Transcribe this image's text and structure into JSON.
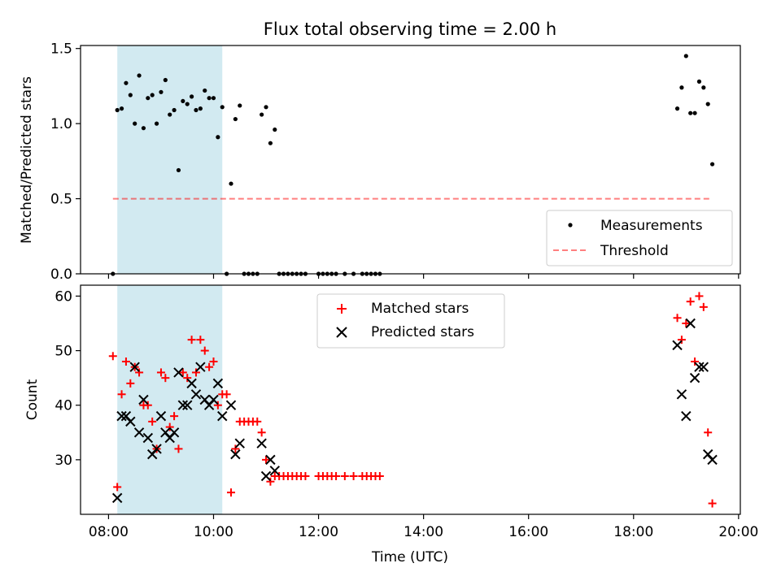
{
  "title": "Flux total observing time = 2.00 h",
  "colors": {
    "shade": "#add8e6",
    "measurement": "#000000",
    "threshold": "#ff0000",
    "matched": "#ff0000",
    "predicted": "#000000"
  },
  "chart_data": [
    {
      "type": "scatter",
      "ylabel": "Matched/Predicted stars",
      "ylim": [
        0,
        1.52
      ],
      "yticks": [
        "0.0",
        "0.5",
        "1.0",
        "1.5"
      ],
      "ytick_values": [
        0,
        0.5,
        1.0,
        1.5
      ],
      "shaded_span": [
        "08:10",
        "10:10"
      ],
      "legend_position": "lower-right",
      "legend": {
        "measurements": "Measurements",
        "threshold": "Threshold"
      },
      "threshold": {
        "value": 0.5,
        "from": "08:05",
        "to": "19:30",
        "style": "dashed"
      },
      "series": [
        {
          "name": "Measurements",
          "points": [
            [
              "08:05",
              0
            ],
            [
              "08:10",
              1.09
            ],
            [
              "08:15",
              1.1
            ],
            [
              "08:20",
              1.27
            ],
            [
              "08:25",
              1.19
            ],
            [
              "08:30",
              1.0
            ],
            [
              "08:35",
              1.32
            ],
            [
              "08:40",
              0.97
            ],
            [
              "08:45",
              1.17
            ],
            [
              "08:50",
              1.19
            ],
            [
              "08:55",
              1.0
            ],
            [
              "09:00",
              1.21
            ],
            [
              "09:05",
              1.29
            ],
            [
              "09:10",
              1.06
            ],
            [
              "09:15",
              1.09
            ],
            [
              "09:20",
              0.69
            ],
            [
              "09:25",
              1.15
            ],
            [
              "09:30",
              1.13
            ],
            [
              "09:35",
              1.18
            ],
            [
              "09:40",
              1.09
            ],
            [
              "09:45",
              1.1
            ],
            [
              "09:50",
              1.22
            ],
            [
              "09:55",
              1.17
            ],
            [
              "10:00",
              1.17
            ],
            [
              "10:05",
              0.91
            ],
            [
              "10:10",
              1.11
            ],
            [
              "10:15",
              0
            ],
            [
              "10:20",
              0.6
            ],
            [
              "10:25",
              1.03
            ],
            [
              "10:30",
              1.12
            ],
            [
              "10:35",
              0
            ],
            [
              "10:40",
              0
            ],
            [
              "10:45",
              0
            ],
            [
              "10:50",
              0
            ],
            [
              "10:55",
              1.06
            ],
            [
              "11:00",
              1.11
            ],
            [
              "11:05",
              0.87
            ],
            [
              "11:10",
              0.96
            ],
            [
              "11:15",
              0
            ],
            [
              "11:20",
              0
            ],
            [
              "11:25",
              0
            ],
            [
              "11:30",
              0
            ],
            [
              "11:35",
              0
            ],
            [
              "11:40",
              0
            ],
            [
              "11:45",
              0
            ],
            [
              "12:00",
              0
            ],
            [
              "12:05",
              0
            ],
            [
              "12:10",
              0
            ],
            [
              "12:15",
              0
            ],
            [
              "12:20",
              0
            ],
            [
              "12:30",
              0
            ],
            [
              "12:40",
              0
            ],
            [
              "12:50",
              0
            ],
            [
              "12:55",
              0
            ],
            [
              "13:00",
              0
            ],
            [
              "13:05",
              0
            ],
            [
              "13:10",
              0
            ],
            [
              "18:50",
              1.1
            ],
            [
              "18:55",
              1.24
            ],
            [
              "19:00",
              1.45
            ],
            [
              "19:05",
              1.07
            ],
            [
              "19:10",
              1.07
            ],
            [
              "19:15",
              1.28
            ],
            [
              "19:20",
              1.24
            ],
            [
              "19:25",
              1.13
            ],
            [
              "19:30",
              0.73
            ]
          ]
        }
      ]
    },
    {
      "type": "scatter",
      "xlabel": "Time (UTC)",
      "ylabel": "Count",
      "ylim": [
        20,
        62
      ],
      "yticks": [
        "30",
        "40",
        "50",
        "60"
      ],
      "ytick_values": [
        30,
        40,
        50,
        60
      ],
      "xlim": [
        "07:28",
        "20:02"
      ],
      "xticks": [
        "08:00",
        "10:00",
        "12:00",
        "14:00",
        "16:00",
        "18:00",
        "20:00"
      ],
      "shaded_span": [
        "08:10",
        "10:10"
      ],
      "legend_position": "upper-center",
      "legend": {
        "matched": "Matched stars",
        "predicted": "Predicted stars"
      },
      "series": [
        {
          "name": "Matched stars",
          "marker": "+",
          "points": [
            [
              "08:05",
              49
            ],
            [
              "08:10",
              25
            ],
            [
              "08:15",
              42
            ],
            [
              "08:20",
              48
            ],
            [
              "08:25",
              44
            ],
            [
              "08:30",
              47
            ],
            [
              "08:35",
              46
            ],
            [
              "08:40",
              40
            ],
            [
              "08:45",
              40
            ],
            [
              "08:50",
              37
            ],
            [
              "08:55",
              32
            ],
            [
              "09:00",
              46
            ],
            [
              "09:05",
              45
            ],
            [
              "09:10",
              36
            ],
            [
              "09:15",
              38
            ],
            [
              "09:20",
              32
            ],
            [
              "09:25",
              46
            ],
            [
              "09:30",
              45
            ],
            [
              "09:35",
              52
            ],
            [
              "09:40",
              46
            ],
            [
              "09:45",
              52
            ],
            [
              "09:50",
              50
            ],
            [
              "09:55",
              47
            ],
            [
              "10:00",
              48
            ],
            [
              "10:05",
              40
            ],
            [
              "10:10",
              42
            ],
            [
              "10:15",
              42
            ],
            [
              "10:20",
              24
            ],
            [
              "10:25",
              32
            ],
            [
              "10:30",
              37
            ],
            [
              "10:35",
              37
            ],
            [
              "10:40",
              37
            ],
            [
              "10:45",
              37
            ],
            [
              "10:50",
              37
            ],
            [
              "10:55",
              35
            ],
            [
              "11:00",
              30
            ],
            [
              "11:05",
              26
            ],
            [
              "11:10",
              27
            ],
            [
              "11:15",
              27
            ],
            [
              "11:20",
              27
            ],
            [
              "11:25",
              27
            ],
            [
              "11:30",
              27
            ],
            [
              "11:35",
              27
            ],
            [
              "11:40",
              27
            ],
            [
              "11:45",
              27
            ],
            [
              "12:00",
              27
            ],
            [
              "12:05",
              27
            ],
            [
              "12:10",
              27
            ],
            [
              "12:15",
              27
            ],
            [
              "12:20",
              27
            ],
            [
              "12:30",
              27
            ],
            [
              "12:40",
              27
            ],
            [
              "12:50",
              27
            ],
            [
              "12:55",
              27
            ],
            [
              "13:00",
              27
            ],
            [
              "13:05",
              27
            ],
            [
              "13:10",
              27
            ],
            [
              "18:50",
              56
            ],
            [
              "18:55",
              52
            ],
            [
              "19:00",
              55
            ],
            [
              "19:05",
              59
            ],
            [
              "19:10",
              48
            ],
            [
              "19:15",
              60
            ],
            [
              "19:20",
              58
            ],
            [
              "19:25",
              35
            ],
            [
              "19:30",
              22
            ]
          ]
        },
        {
          "name": "Predicted stars",
          "marker": "x",
          "points": [
            [
              "08:10",
              23
            ],
            [
              "08:15",
              38
            ],
            [
              "08:20",
              38
            ],
            [
              "08:25",
              37
            ],
            [
              "08:30",
              47
            ],
            [
              "08:35",
              35
            ],
            [
              "08:40",
              41
            ],
            [
              "08:45",
              34
            ],
            [
              "08:50",
              31
            ],
            [
              "08:55",
              32
            ],
            [
              "09:00",
              38
            ],
            [
              "09:05",
              35
            ],
            [
              "09:10",
              34
            ],
            [
              "09:15",
              35
            ],
            [
              "09:20",
              46
            ],
            [
              "09:25",
              40
            ],
            [
              "09:30",
              40
            ],
            [
              "09:35",
              44
            ],
            [
              "09:40",
              42
            ],
            [
              "09:45",
              47
            ],
            [
              "09:50",
              41
            ],
            [
              "09:55",
              40
            ],
            [
              "10:00",
              41
            ],
            [
              "10:05",
              44
            ],
            [
              "10:10",
              38
            ],
            [
              "10:20",
              40
            ],
            [
              "10:25",
              31
            ],
            [
              "10:30",
              33
            ],
            [
              "10:55",
              33
            ],
            [
              "11:00",
              27
            ],
            [
              "11:05",
              30
            ],
            [
              "11:10",
              28
            ],
            [
              "18:50",
              51
            ],
            [
              "18:55",
              42
            ],
            [
              "19:00",
              38
            ],
            [
              "19:05",
              55
            ],
            [
              "19:10",
              45
            ],
            [
              "19:15",
              47
            ],
            [
              "19:20",
              47
            ],
            [
              "19:25",
              31
            ],
            [
              "19:30",
              30
            ]
          ]
        }
      ]
    }
  ]
}
